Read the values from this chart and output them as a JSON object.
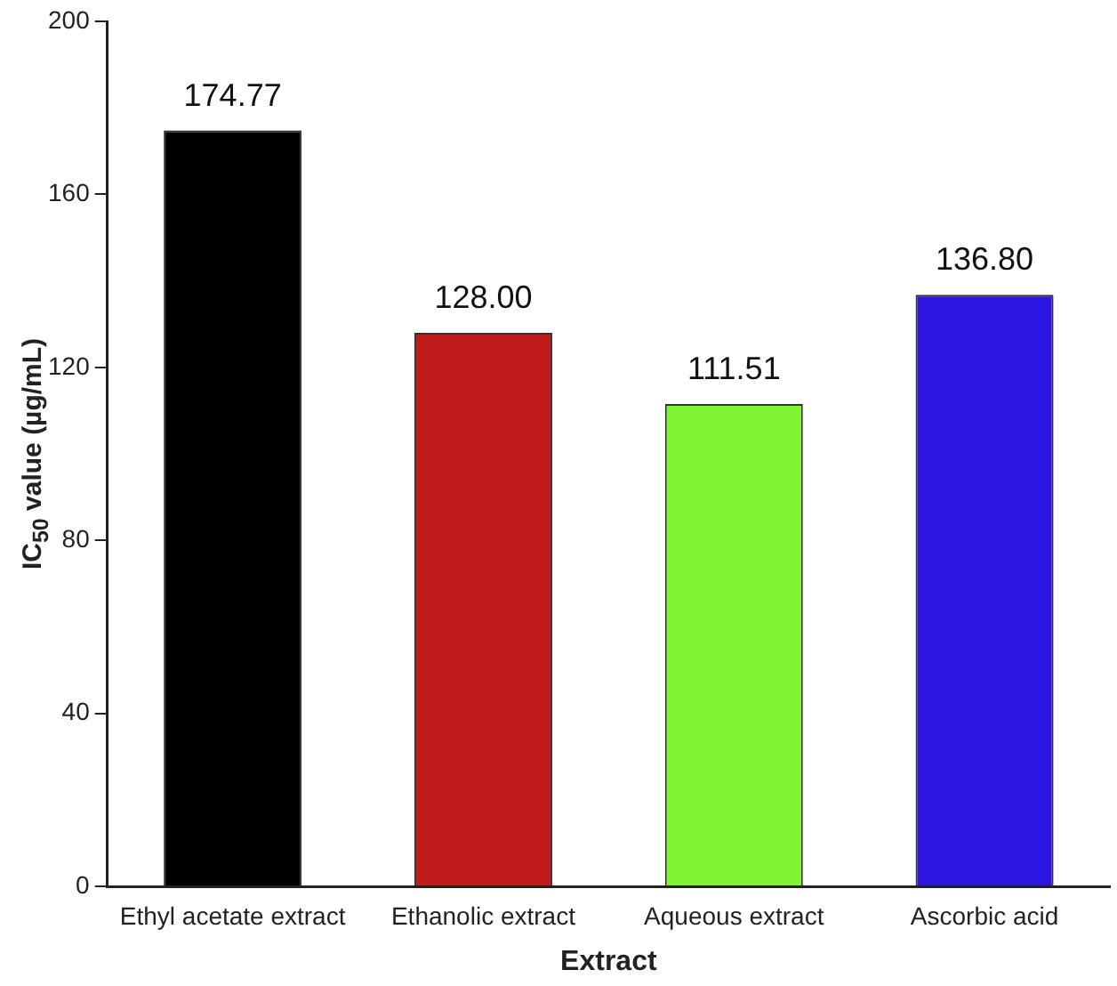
{
  "chart_data": {
    "type": "bar",
    "xlabel": "Extract",
    "ylabel": "IC$_{50}$ value (µg/mL)",
    "categories": [
      "Ethyl acetate extract",
      "Ethanolic extract",
      "Aqueous extract",
      "Ascorbic acid"
    ],
    "values": [
      174.77,
      128.0,
      111.51,
      136.8
    ],
    "colors": [
      "#000000",
      "#c01c1c",
      "#80f532",
      "#2e14e0"
    ],
    "value_labels": [
      "174.77",
      "128.00",
      "111.51",
      "136.80"
    ],
    "ylim": [
      0,
      200
    ],
    "yticks": [
      0,
      40,
      80,
      120,
      160,
      200
    ],
    "grid": false,
    "legend": false
  }
}
